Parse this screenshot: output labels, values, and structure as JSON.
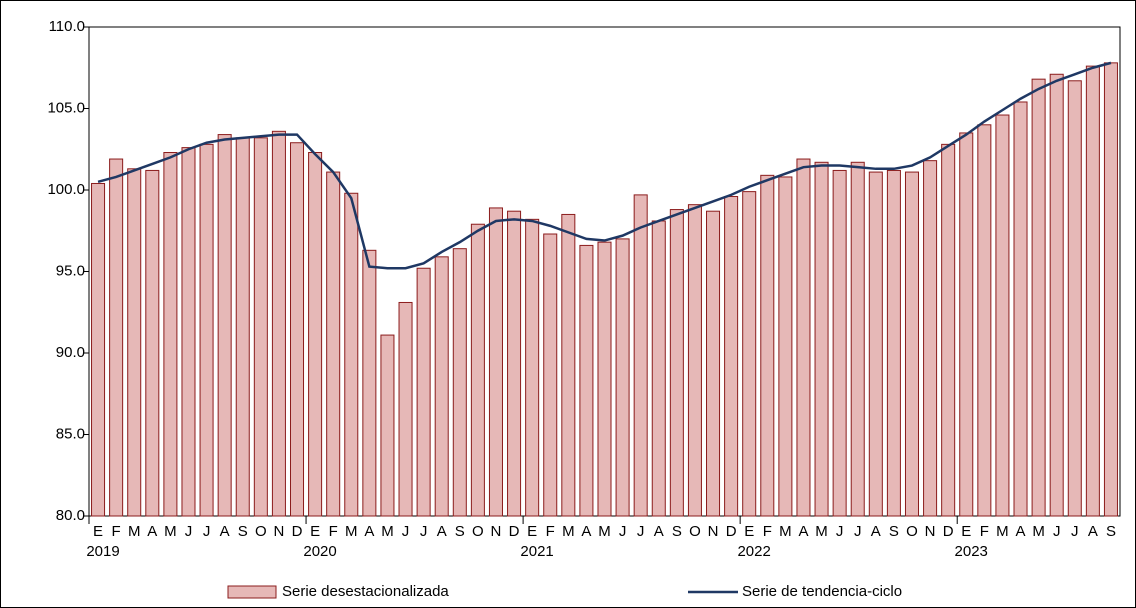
{
  "chart_data": {
    "type": "bar-line",
    "categories": [
      "E",
      "F",
      "M",
      "A",
      "M",
      "J",
      "J",
      "A",
      "S",
      "O",
      "N",
      "D",
      "E",
      "F",
      "M",
      "A",
      "M",
      "J",
      "J",
      "A",
      "S",
      "O",
      "N",
      "D",
      "E",
      "F",
      "M",
      "A",
      "M",
      "J",
      "J",
      "A",
      "S",
      "O",
      "N",
      "D",
      "E",
      "F",
      "M",
      "A",
      "M",
      "J",
      "J",
      "A",
      "S",
      "O",
      "N",
      "D",
      "E",
      "F",
      "M",
      "A",
      "M",
      "J",
      "J",
      "A",
      "S"
    ],
    "years": [
      "2019",
      "2020",
      "2021",
      "2022",
      "2023"
    ],
    "ylim": [
      80,
      110
    ],
    "yticks": [
      {
        "value": 80,
        "label": "80.0"
      },
      {
        "value": 85,
        "label": "85.0"
      },
      {
        "value": 90,
        "label": "90.0"
      },
      {
        "value": 95,
        "label": "95.0"
      },
      {
        "value": 100,
        "label": "100.0"
      },
      {
        "value": 105,
        "label": "105.0"
      },
      {
        "value": 110,
        "label": "110.0"
      }
    ],
    "series": [
      {
        "name": "Serie desestacionalizada",
        "type": "bar",
        "color": "#e6b8b7",
        "edge_color": "#8b1c1c",
        "values": [
          100.4,
          101.9,
          101.3,
          101.2,
          102.3,
          102.6,
          102.8,
          103.4,
          103.2,
          103.2,
          103.6,
          102.9,
          102.3,
          101.1,
          99.8,
          96.3,
          91.1,
          93.1,
          95.2,
          95.9,
          96.4,
          97.9,
          98.9,
          98.7,
          98.2,
          97.3,
          98.5,
          96.6,
          96.8,
          97.0,
          99.7,
          98.1,
          98.8,
          99.1,
          98.7,
          99.6,
          99.9,
          100.9,
          100.8,
          101.9,
          101.7,
          101.2,
          101.7,
          101.1,
          101.2,
          101.1,
          101.8,
          102.8,
          103.5,
          104.0,
          104.6,
          105.4,
          106.8,
          107.1,
          106.7,
          107.6,
          107.8
        ]
      },
      {
        "name": "Serie de tendencia-ciclo",
        "type": "line",
        "color": "#1f3864",
        "values": [
          100.5,
          100.8,
          101.2,
          101.6,
          102.0,
          102.5,
          102.9,
          103.1,
          103.2,
          103.3,
          103.4,
          103.4,
          102.2,
          101.1,
          99.5,
          95.3,
          95.2,
          95.2,
          95.5,
          96.2,
          96.8,
          97.5,
          98.1,
          98.2,
          98.1,
          97.8,
          97.4,
          97.0,
          96.9,
          97.2,
          97.7,
          98.1,
          98.5,
          98.9,
          99.3,
          99.7,
          100.2,
          100.6,
          101.0,
          101.4,
          101.5,
          101.5,
          101.4,
          101.3,
          101.3,
          101.5,
          102.0,
          102.7,
          103.4,
          104.2,
          104.9,
          105.6,
          106.2,
          106.7,
          107.1,
          107.5,
          107.8
        ]
      }
    ]
  }
}
